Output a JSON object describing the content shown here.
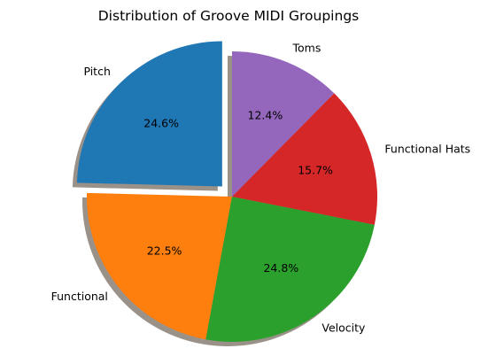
{
  "chart_data": {
    "type": "pie",
    "title": "Distribution of Groove MIDI Groupings",
    "start_angle_deg": 90,
    "direction": "counterclockwise",
    "shadow": true,
    "slices": [
      {
        "label": "Pitch",
        "value": 24.6,
        "pct_text": "24.6%",
        "color": "#1f77b4",
        "exploded": true
      },
      {
        "label": "Functional",
        "value": 22.5,
        "pct_text": "22.5%",
        "color": "#ff7f0e",
        "exploded": false
      },
      {
        "label": "Velocity",
        "value": 24.8,
        "pct_text": "24.8%",
        "color": "#2ca02c",
        "exploded": false
      },
      {
        "label": "Functional Hats",
        "value": 15.7,
        "pct_text": "15.7%",
        "color": "#d62728",
        "exploded": false
      },
      {
        "label": "Toms",
        "value": 12.4,
        "pct_text": "12.4%",
        "color": "#9467bd",
        "exploded": false
      }
    ]
  }
}
